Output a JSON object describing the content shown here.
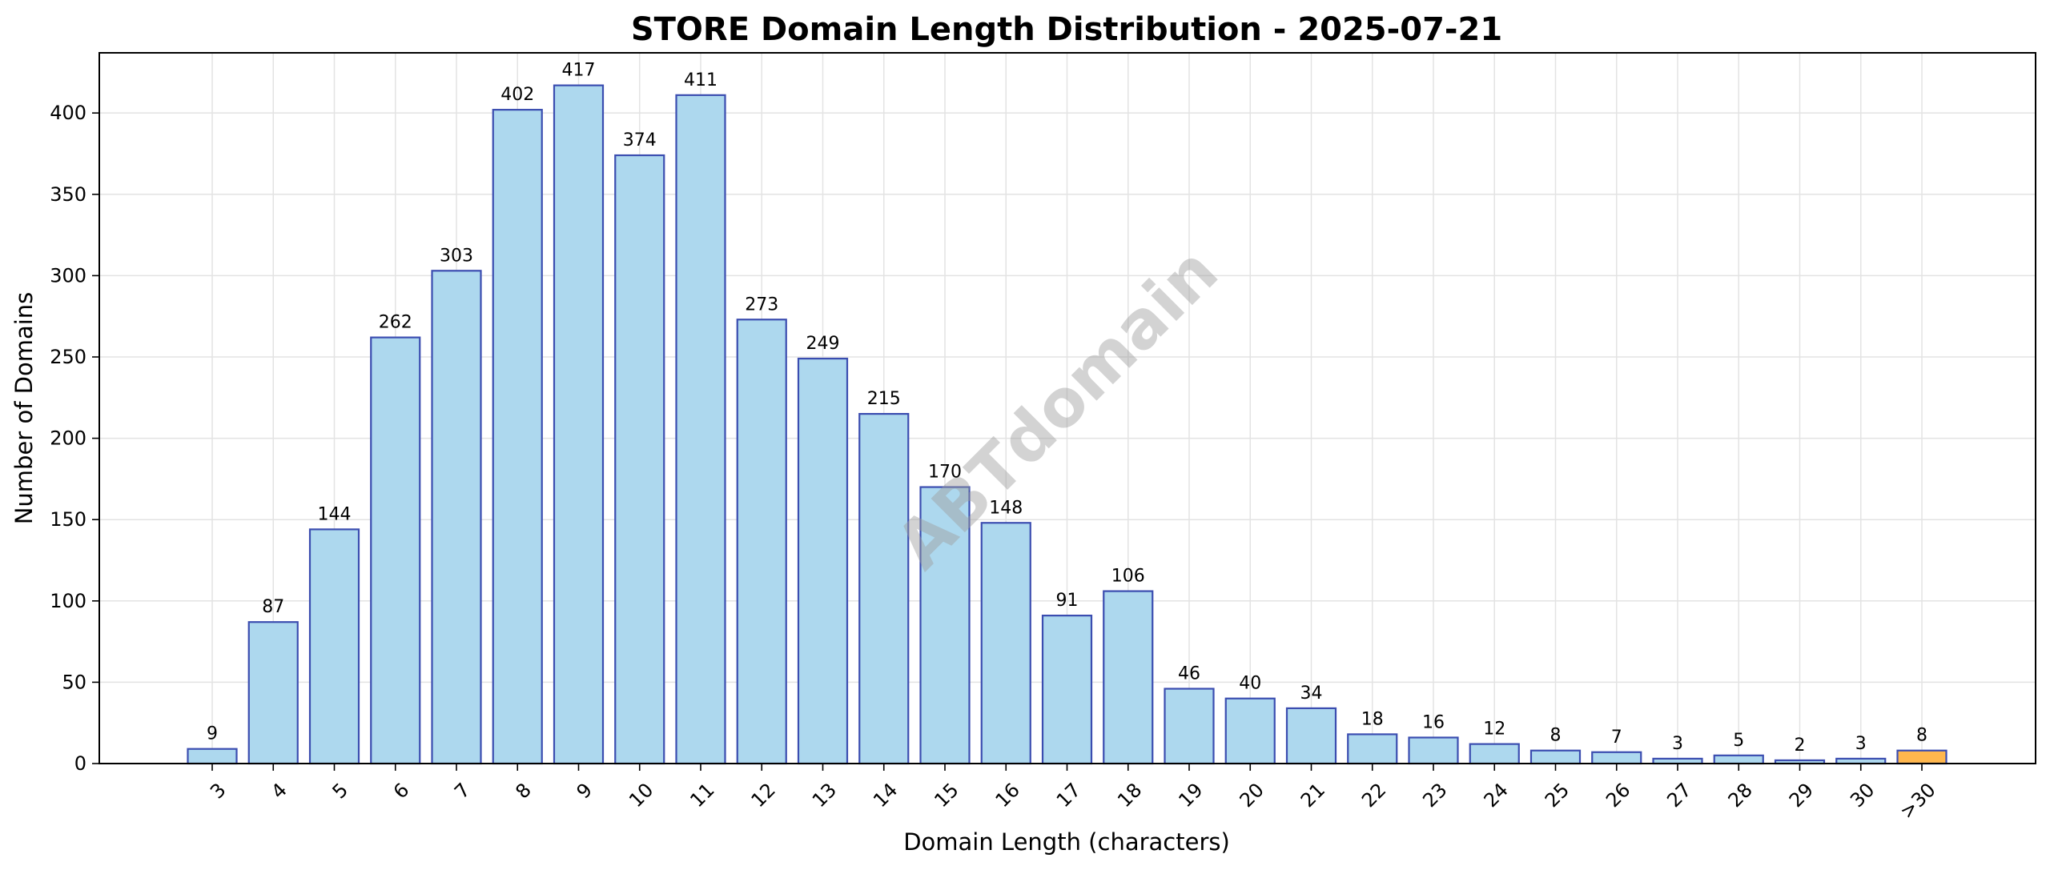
{
  "chart_data": {
    "type": "bar",
    "title": "STORE Domain Length Distribution - 2025-07-21",
    "xlabel": "Domain Length (characters)",
    "ylabel": "Number of Domains",
    "categories": [
      "3",
      "4",
      "5",
      "6",
      "7",
      "8",
      "9",
      "10",
      "11",
      "12",
      "13",
      "14",
      "15",
      "16",
      "17",
      "18",
      "19",
      "20",
      "21",
      "22",
      "23",
      "24",
      "25",
      "26",
      "27",
      "28",
      "29",
      "30",
      ">30"
    ],
    "values": [
      9,
      87,
      144,
      262,
      303,
      402,
      417,
      374,
      411,
      273,
      249,
      215,
      170,
      148,
      91,
      106,
      46,
      40,
      34,
      18,
      16,
      12,
      8,
      7,
      3,
      5,
      2,
      3,
      8
    ],
    "yticks": [
      0,
      50,
      100,
      150,
      200,
      250,
      300,
      350,
      400
    ],
    "ylim": [
      0,
      437
    ],
    "grid": true,
    "legend": "none",
    "watermark": "ABTdomain",
    "colors": {
      "bar_fill": "#add8ee",
      "bar_edge": "#3b4db0",
      "highlight_fill": "#ffb74d",
      "highlight_edge": "#3b4db0",
      "grid": "#e3e3e3"
    }
  }
}
